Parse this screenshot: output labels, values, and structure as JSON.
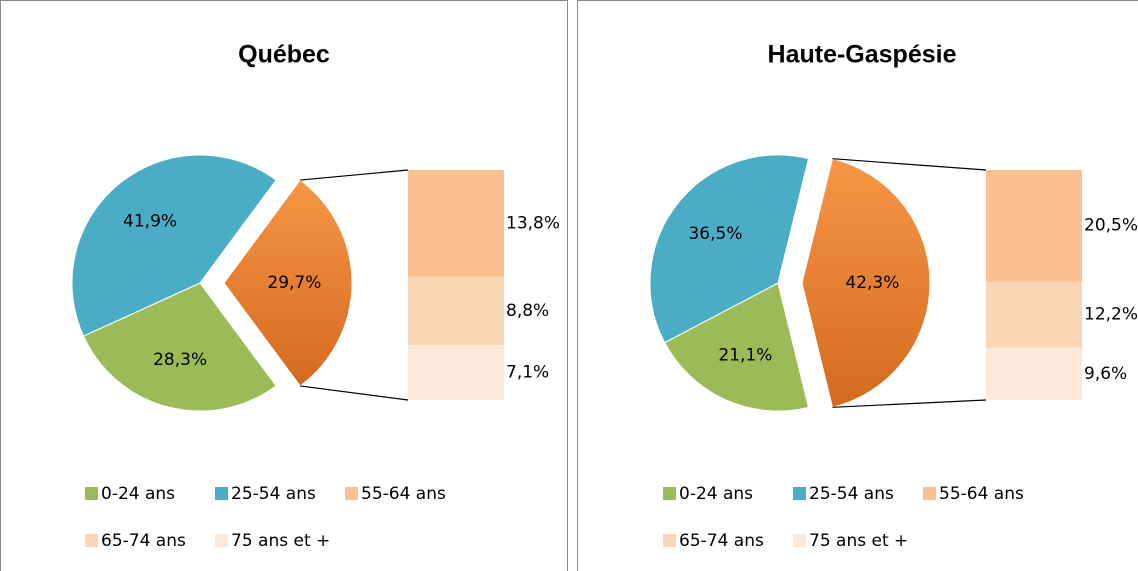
{
  "chart_data": [
    {
      "type": "pie",
      "title": "Québec",
      "categories": [
        "0-24 ans",
        "25-54 ans",
        "55-64 ans",
        "65-74 ans",
        "75 ans et +"
      ],
      "values": [
        28.3,
        41.9,
        13.8,
        8.8,
        7.1
      ],
      "value_labels": [
        "28,3%",
        "41,9%",
        "13,8%",
        "8,8%",
        "7,1%"
      ],
      "colors": [
        "#9bbb59",
        "#4bacc6",
        "#fac090",
        "#fcd5b5",
        "#fde9d9"
      ],
      "group": {
        "value": 29.7,
        "label": "29,7%",
        "color": "#f79646"
      }
    },
    {
      "type": "pie",
      "title": "Haute-Gaspésie",
      "categories": [
        "0-24 ans",
        "25-54 ans",
        "55-64 ans",
        "65-74 ans",
        "75 ans et +"
      ],
      "values": [
        21.1,
        36.5,
        20.5,
        12.2,
        9.6
      ],
      "value_labels": [
        "21,1%",
        "36,5%",
        "20,5%",
        "12,2%",
        "9,6%"
      ],
      "colors": [
        "#9bbb59",
        "#4bacc6",
        "#fac090",
        "#fcd5b5",
        "#fde9d9"
      ],
      "group": {
        "value": 42.3,
        "label": "42,3%",
        "color": "#f79646"
      }
    }
  ]
}
